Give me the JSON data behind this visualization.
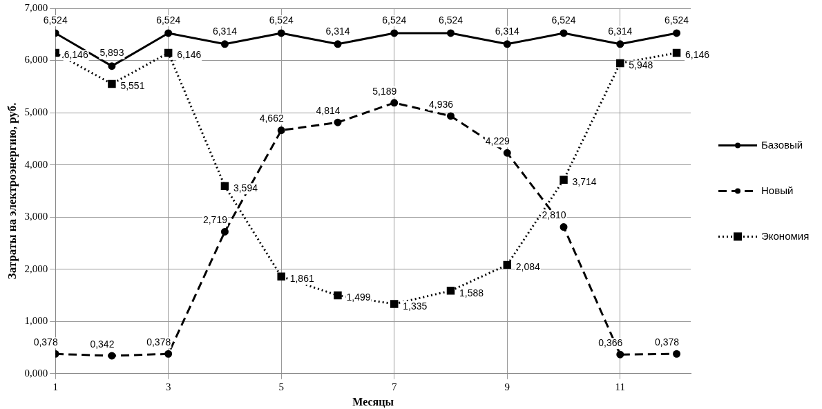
{
  "chart_data": {
    "type": "line",
    "xlabel": "Месяцы",
    "ylabel": "Затраты на электроэнергию, руб.",
    "x": [
      1,
      2,
      3,
      4,
      5,
      6,
      7,
      8,
      9,
      10,
      11,
      12
    ],
    "xlim": [
      1,
      12.25
    ],
    "xticks": [
      1,
      3,
      5,
      7,
      9,
      11
    ],
    "ylim": [
      0,
      7
    ],
    "yticks": [
      {
        "value": 0,
        "label": "0,000"
      },
      {
        "value": 1,
        "label": "1,000"
      },
      {
        "value": 2,
        "label": "2,000"
      },
      {
        "value": 3,
        "label": "3,000"
      },
      {
        "value": 4,
        "label": "4,000"
      },
      {
        "value": 5,
        "label": "5,000"
      },
      {
        "value": 6,
        "label": "6,000"
      },
      {
        "value": 7,
        "label": "7,000"
      }
    ],
    "grid": true,
    "legend": "right",
    "series": [
      {
        "name": "Базовый",
        "color": "#000000",
        "marker": "circle",
        "line_style": "solid",
        "values": [
          6.524,
          5.893,
          6.524,
          6.314,
          6.524,
          6.314,
          6.524,
          6.524,
          6.314,
          6.524,
          6.314,
          6.524
        ],
        "value_labels": [
          "6,524",
          "5,893",
          "6,524",
          "6,314",
          "6,524",
          "6,314",
          "6,524",
          "6,524",
          "6,314",
          "6,524",
          "6,314",
          "6,524"
        ]
      },
      {
        "name": "Новый",
        "color": "#000000",
        "marker": "circle",
        "line_style": "dashed",
        "values": [
          0.378,
          0.342,
          0.378,
          2.719,
          4.662,
          4.814,
          5.189,
          4.936,
          4.229,
          2.81,
          0.366,
          0.378
        ],
        "value_labels": [
          "0,378",
          "0,342",
          "0,378",
          "2,719",
          "4,662",
          "4,814",
          "5,189",
          "4,936",
          "4,229",
          "2,810",
          "0,366",
          "0,378"
        ]
      },
      {
        "name": "Экономия",
        "color": "#000000",
        "marker": "square",
        "line_style": "dotted",
        "values": [
          6.146,
          5.551,
          6.146,
          3.594,
          1.861,
          1.499,
          1.335,
          1.588,
          2.084,
          3.714,
          5.948,
          6.146
        ],
        "value_labels": [
          "6,146",
          "5,551",
          "6,146",
          "3,594",
          "1,861",
          "1,499",
          "1,335",
          "1,588",
          "2,084",
          "3,714",
          "5,948",
          "6,146"
        ]
      }
    ]
  }
}
